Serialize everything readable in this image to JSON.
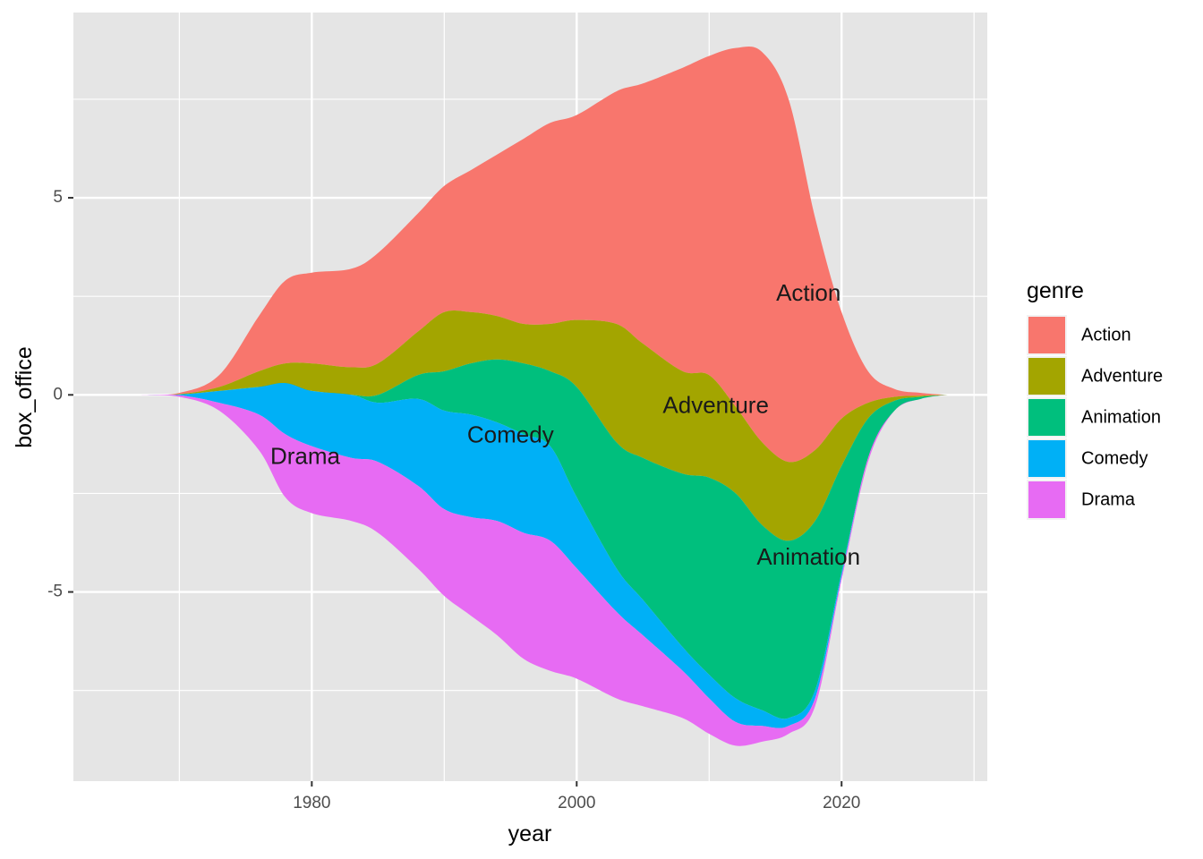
{
  "chart_data": {
    "type": "area",
    "subtype": "streamgraph",
    "xlabel": "year",
    "ylabel": "box_office",
    "xlim": [
      1962,
      2031
    ],
    "ylim": [
      -9.8,
      9.7
    ],
    "x_ticks": [
      1980,
      2000,
      2020
    ],
    "x_minor_ticks": [
      1970,
      1990,
      2010,
      2030
    ],
    "y_ticks": [
      -5,
      0,
      5
    ],
    "y_minor_ticks": [
      -7.5,
      -2.5,
      2.5,
      7.5
    ],
    "x_tick_labels": [
      "1980",
      "2000",
      "2020"
    ],
    "y_tick_labels": [
      "-5",
      "0",
      "5"
    ],
    "grid": true,
    "legend": {
      "title": "genre",
      "position": "right",
      "entries": [
        "Action",
        "Adventure",
        "Animation",
        "Comedy",
        "Drama"
      ]
    },
    "colors": {
      "Action": "#F8766D",
      "Adventure": "#A3A500",
      "Animation": "#00BF7D",
      "Comedy": "#00B0F6",
      "Drama": "#E76BF3",
      "panel_background": "#E5E5E5",
      "grid": "#FFFFFF"
    },
    "x": [
      1967,
      1970,
      1973,
      1976,
      1978,
      1980,
      1983,
      1985,
      1988,
      1990,
      1992,
      1994,
      1996,
      1998,
      2000,
      2003,
      2005,
      2008,
      2010,
      2012,
      2014,
      2016,
      2018,
      2020,
      2022,
      2024,
      2026,
      2028
    ],
    "boundaries": [
      {
        "name": "top",
        "values": [
          0,
          0.05,
          0.5,
          2.0,
          2.9,
          3.1,
          3.2,
          3.6,
          4.6,
          5.3,
          5.7,
          6.1,
          6.5,
          6.9,
          7.1,
          7.7,
          7.9,
          8.3,
          8.6,
          8.8,
          8.7,
          7.5,
          4.5,
          2.1,
          0.6,
          0.15,
          0.05,
          0
        ]
      },
      {
        "name": "action-adventure",
        "values": [
          0,
          0.02,
          0.2,
          0.6,
          0.8,
          0.8,
          0.7,
          0.8,
          1.6,
          2.1,
          2.1,
          2.0,
          1.8,
          1.8,
          1.9,
          1.8,
          1.3,
          0.6,
          0.5,
          -0.3,
          -1.2,
          -1.7,
          -1.4,
          -0.6,
          -0.2,
          -0.05,
          -0.02,
          0
        ]
      },
      {
        "name": "adventure-animation",
        "values": [
          0,
          0.01,
          0.1,
          0.2,
          0.2,
          0.1,
          0.0,
          0.0,
          0.5,
          0.6,
          0.8,
          0.9,
          0.8,
          0.6,
          0.2,
          -1.2,
          -1.6,
          -2.0,
          -2.1,
          -2.5,
          -3.3,
          -3.7,
          -3.2,
          -1.8,
          -0.6,
          -0.15,
          -0.05,
          0
        ]
      },
      {
        "name": "animation-comedy",
        "values": [
          0,
          0.01,
          0.1,
          0.2,
          0.3,
          0.1,
          0.0,
          -0.2,
          -0.1,
          -0.4,
          -0.5,
          -0.7,
          -1.0,
          -1.3,
          -2.6,
          -4.4,
          -5.2,
          -6.4,
          -7.1,
          -7.7,
          -8.0,
          -8.2,
          -7.5,
          -4.5,
          -1.6,
          -0.4,
          -0.1,
          0
        ]
      },
      {
        "name": "comedy-drama",
        "values": [
          0,
          -0.01,
          -0.2,
          -0.5,
          -1.0,
          -1.3,
          -1.6,
          -1.7,
          -2.3,
          -2.9,
          -3.1,
          -3.2,
          -3.5,
          -3.7,
          -4.4,
          -5.5,
          -6.1,
          -7.0,
          -7.7,
          -8.3,
          -8.4,
          -8.4,
          -7.7,
          -4.6,
          -1.6,
          -0.4,
          -0.1,
          0
        ]
      },
      {
        "name": "bottom",
        "values": [
          0,
          -0.05,
          -0.4,
          -1.4,
          -2.6,
          -3.0,
          -3.2,
          -3.5,
          -4.4,
          -5.1,
          -5.6,
          -6.1,
          -6.7,
          -7.0,
          -7.2,
          -7.7,
          -7.9,
          -8.2,
          -8.6,
          -8.9,
          -8.8,
          -8.6,
          -7.9,
          -4.7,
          -1.7,
          -0.4,
          -0.1,
          0
        ]
      }
    ],
    "layers": [
      {
        "name": "Action",
        "upper": "top",
        "lower": "action-adventure"
      },
      {
        "name": "Adventure",
        "upper": "action-adventure",
        "lower": "adventure-animation"
      },
      {
        "name": "Animation",
        "upper": "adventure-animation",
        "lower": "animation-comedy"
      },
      {
        "name": "Comedy",
        "upper": "animation-comedy",
        "lower": "comedy-drama"
      },
      {
        "name": "Drama",
        "upper": "comedy-drama",
        "lower": "bottom"
      }
    ],
    "annotations": [
      {
        "text": "Action",
        "x": 2017.5,
        "y": 2.55
      },
      {
        "text": "Adventure",
        "x": 2010.5,
        "y": -0.3
      },
      {
        "text": "Animation",
        "x": 2017.5,
        "y": -4.15
      },
      {
        "text": "Comedy",
        "x": 1995.0,
        "y": -1.05
      },
      {
        "text": "Drama",
        "x": 1979.5,
        "y": -1.6
      }
    ]
  }
}
